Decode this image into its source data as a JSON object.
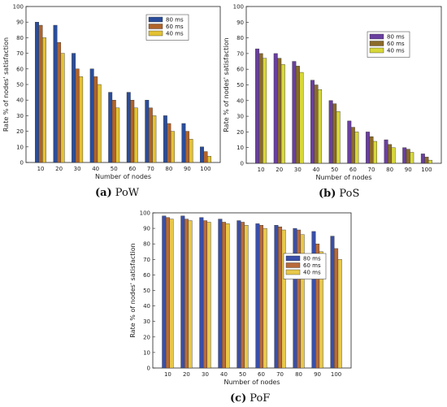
{
  "chart_data": [
    {
      "type": "bar",
      "caption_label": "(a)",
      "caption_text": "PoW",
      "xlabel": "Number of nodes",
      "ylabel": "Rate % of nodes' satisfaction",
      "ylim": [
        0,
        100
      ],
      "yticks": [
        0,
        10,
        20,
        30,
        40,
        50,
        60,
        70,
        80,
        90,
        100
      ],
      "categories": [
        "10",
        "20",
        "30",
        "40",
        "50",
        "60",
        "70",
        "80",
        "90",
        "100"
      ],
      "legend_position": "top-right",
      "grid": false,
      "series": [
        {
          "name": "80 ms",
          "color": "#2a4d9b",
          "values": [
            90,
            88,
            70,
            60,
            45,
            45,
            40,
            30,
            25,
            10
          ]
        },
        {
          "name": "60 ms",
          "color": "#b0632a",
          "values": [
            88,
            77,
            60,
            55,
            40,
            40,
            35,
            25,
            20,
            7
          ]
        },
        {
          "name": "40 ms",
          "color": "#e3c233",
          "values": [
            80,
            70,
            55,
            50,
            35,
            35,
            30,
            20,
            15,
            4
          ]
        }
      ]
    },
    {
      "type": "bar",
      "caption_label": "(b)",
      "caption_text": "PoS",
      "xlabel": "Number of nodes",
      "ylabel": "Rate % of nodes' satisfaction",
      "ylim": [
        0,
        100
      ],
      "yticks": [
        0,
        10,
        20,
        30,
        40,
        50,
        60,
        70,
        80,
        90,
        100
      ],
      "categories": [
        "10",
        "20",
        "30",
        "40",
        "50",
        "60",
        "70",
        "80",
        "90",
        "100"
      ],
      "legend_position": "top-right",
      "grid": false,
      "series": [
        {
          "name": "80 ms",
          "color": "#6a3fa0",
          "values": [
            73,
            70,
            65,
            53,
            40,
            27,
            20,
            15,
            10,
            6
          ]
        },
        {
          "name": "60 ms",
          "color": "#8a6a2a",
          "values": [
            70,
            67,
            62,
            50,
            38,
            23,
            17,
            12,
            9,
            4
          ]
        },
        {
          "name": "40 ms",
          "color": "#d8d83a",
          "values": [
            67,
            63,
            58,
            47,
            33,
            20,
            14,
            10,
            7,
            2
          ]
        }
      ]
    },
    {
      "type": "bar",
      "caption_label": "(c)",
      "caption_text": "PoF",
      "xlabel": "Number of nodes",
      "ylabel": "Rate % of nodes' satisfaction",
      "ylim": [
        0,
        100
      ],
      "yticks": [
        0,
        10,
        20,
        30,
        40,
        50,
        60,
        70,
        80,
        90,
        100
      ],
      "categories": [
        "10",
        "20",
        "30",
        "40",
        "50",
        "60",
        "70",
        "80",
        "90",
        "100"
      ],
      "legend_position": "top-right",
      "grid": false,
      "series": [
        {
          "name": "80 ms",
          "color": "#3a4fa8",
          "values": [
            98,
            98,
            97,
            96,
            95,
            93,
            92,
            90,
            88,
            85
          ]
        },
        {
          "name": "60 ms",
          "color": "#b86a3a",
          "values": [
            97,
            96,
            95,
            94,
            94,
            92,
            91,
            89,
            80,
            77
          ]
        },
        {
          "name": "40 ms",
          "color": "#e8c84a",
          "values": [
            96,
            95,
            94,
            93,
            92,
            90,
            89,
            86,
            75,
            70
          ]
        }
      ]
    }
  ]
}
